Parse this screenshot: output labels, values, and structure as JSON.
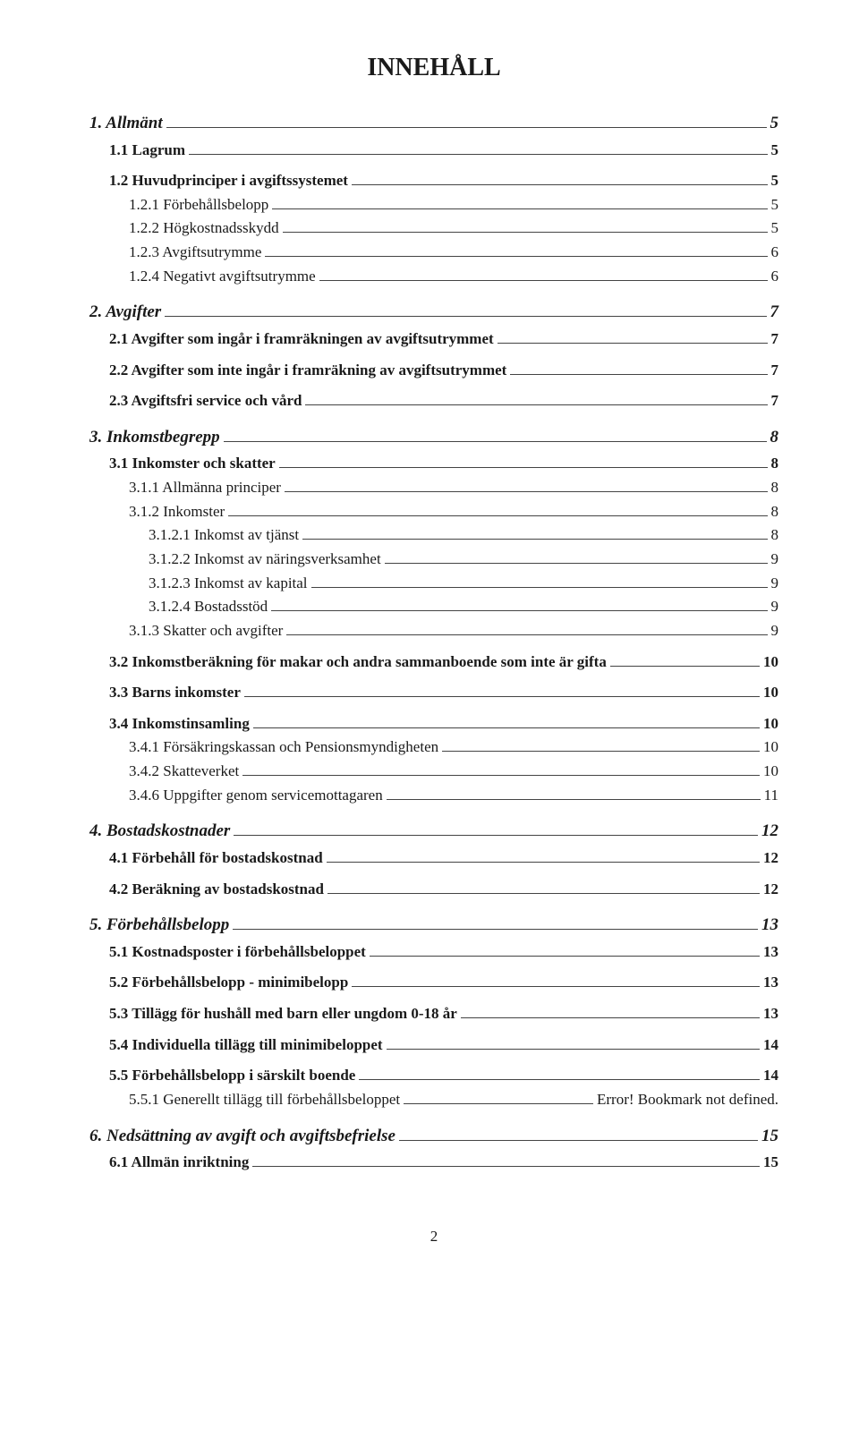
{
  "title": "INNEHÅLL",
  "page_number": "2",
  "toc": [
    {
      "level": 1,
      "label": "1. Allmänt",
      "page": "5"
    },
    {
      "level": 2,
      "label": "1.1 Lagrum",
      "page": "5"
    },
    {
      "level": 2,
      "label": "1.2 Huvudprinciper i avgiftssystemet",
      "page": "5"
    },
    {
      "level": 3,
      "label": "1.2.1 Förbehållsbelopp",
      "page": "5"
    },
    {
      "level": 3,
      "label": "1.2.2 Högkostnadsskydd",
      "page": "5"
    },
    {
      "level": 3,
      "label": "1.2.3 Avgiftsutrymme",
      "page": "6"
    },
    {
      "level": 3,
      "label": "1.2.4 Negativt avgiftsutrymme",
      "page": "6"
    },
    {
      "level": 1,
      "label": "2. Avgifter",
      "page": "7"
    },
    {
      "level": 2,
      "label": "2.1 Avgifter som ingår i framräkningen av avgiftsutrymmet",
      "page": "7"
    },
    {
      "level": 2,
      "label": "2.2 Avgifter som inte ingår i framräkning av avgiftsutrymmet",
      "page": "7"
    },
    {
      "level": 2,
      "label": "2.3 Avgiftsfri service och vård",
      "page": "7"
    },
    {
      "level": 1,
      "label": "3. Inkomstbegrepp",
      "page": "8"
    },
    {
      "level": 2,
      "label": "3.1 Inkomster och skatter",
      "page": "8"
    },
    {
      "level": 3,
      "label": "3.1.1 Allmänna principer",
      "page": "8"
    },
    {
      "level": 3,
      "label": "3.1.2 Inkomster",
      "page": "8"
    },
    {
      "level": 4,
      "label": "3.1.2.1 Inkomst av tjänst",
      "page": "8"
    },
    {
      "level": 4,
      "label": "3.1.2.2 Inkomst av näringsverksamhet",
      "page": "9"
    },
    {
      "level": 4,
      "label": "3.1.2.3 Inkomst av kapital",
      "page": "9"
    },
    {
      "level": 4,
      "label": "3.1.2.4 Bostadsstöd",
      "page": "9"
    },
    {
      "level": 3,
      "label": "3.1.3 Skatter och avgifter",
      "page": "9"
    },
    {
      "level": 2,
      "label": "3.2 Inkomstberäkning för makar och andra sammanboende som inte är gifta",
      "page": "10"
    },
    {
      "level": 2,
      "label": "3.3 Barns inkomster",
      "page": "10"
    },
    {
      "level": 2,
      "label": "3.4 Inkomstinsamling",
      "page": "10"
    },
    {
      "level": 3,
      "label": "3.4.1 Försäkringskassan och Pensionsmyndigheten",
      "page": "10"
    },
    {
      "level": 3,
      "label": "3.4.2 Skatteverket",
      "page": "10"
    },
    {
      "level": 3,
      "label": "3.4.6 Uppgifter genom servicemottagaren",
      "page": "11"
    },
    {
      "level": 1,
      "label": "4. Bostadskostnader",
      "page": "12"
    },
    {
      "level": 2,
      "label": "4.1 Förbehåll för bostadskostnad",
      "page": "12"
    },
    {
      "level": 2,
      "label": "4.2 Beräkning av bostadskostnad",
      "page": "12"
    },
    {
      "level": 1,
      "label": "5. Förbehållsbelopp",
      "page": "13"
    },
    {
      "level": 2,
      "label": "5.1 Kostnadsposter i förbehållsbeloppet",
      "page": "13"
    },
    {
      "level": 2,
      "label": "5.2 Förbehållsbelopp - minimibelopp",
      "page": "13"
    },
    {
      "level": 2,
      "label": "5.3 Tillägg för hushåll med barn eller ungdom 0-18 år",
      "page": "13"
    },
    {
      "level": 2,
      "label": "5.4 Individuella tillägg till minimibeloppet",
      "page": "14"
    },
    {
      "level": 2,
      "label": "5.5 Förbehållsbelopp i särskilt boende",
      "page": "14"
    },
    {
      "level": 3,
      "label": "5.5.1 Generellt tillägg till förbehållsbeloppet",
      "page": "Error! Bookmark not defined."
    },
    {
      "level": 1,
      "label": "6. Nedsättning av avgift och avgiftsbefrielse",
      "page": "15"
    },
    {
      "level": 2,
      "label": "6.1 Allmän inriktning",
      "page": "15"
    }
  ]
}
